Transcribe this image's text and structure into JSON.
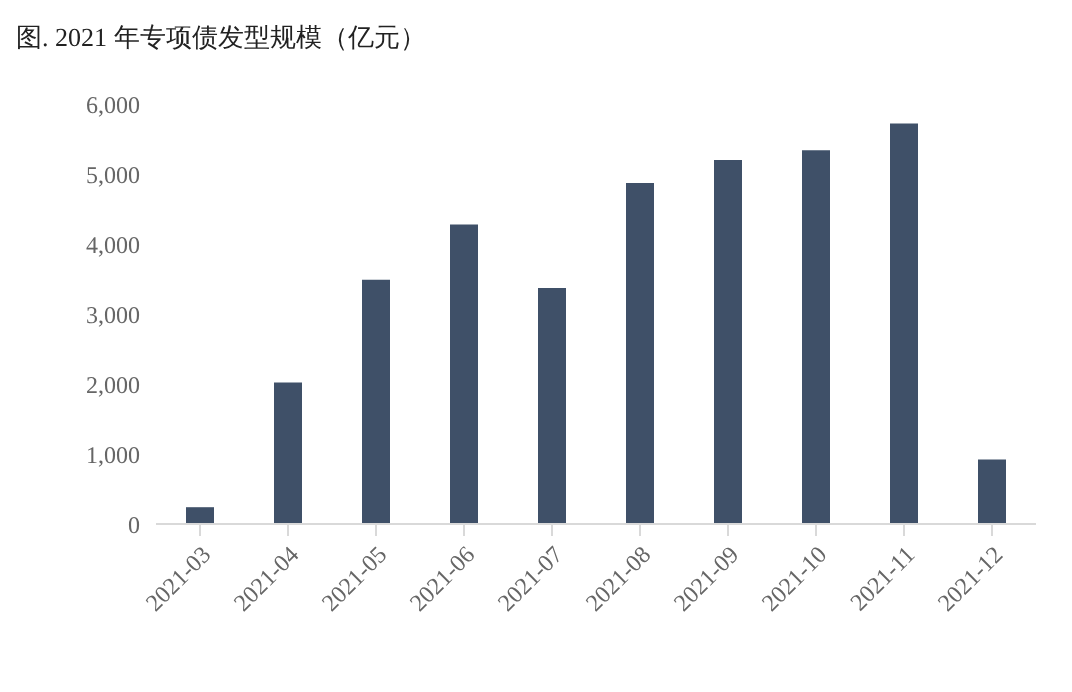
{
  "chart_data": {
    "type": "bar",
    "title": "图. 2021 年专项债发型规模（亿元）",
    "categories": [
      "2021-03",
      "2021-04",
      "2021-05",
      "2021-06",
      "2021-07",
      "2021-08",
      "2021-09",
      "2021-10",
      "2021-11",
      "2021-12"
    ],
    "values": [
      240,
      2020,
      3490,
      4280,
      3370,
      4870,
      5200,
      5340,
      5720,
      920
    ],
    "color": "#3f5068",
    "ylim": [
      0,
      6000
    ],
    "yticks": [
      0,
      {
        "value": 1000,
        "label": "1,000"
      },
      {
        "value": 2000,
        "label": "2,000"
      },
      {
        "value": 3000,
        "label": "3,000"
      },
      {
        "value": 4000,
        "label": "4,000"
      },
      {
        "value": 5000,
        "label": "5,000"
      },
      {
        "value": 6000,
        "label": "6,000"
      }
    ],
    "grid": false
  }
}
